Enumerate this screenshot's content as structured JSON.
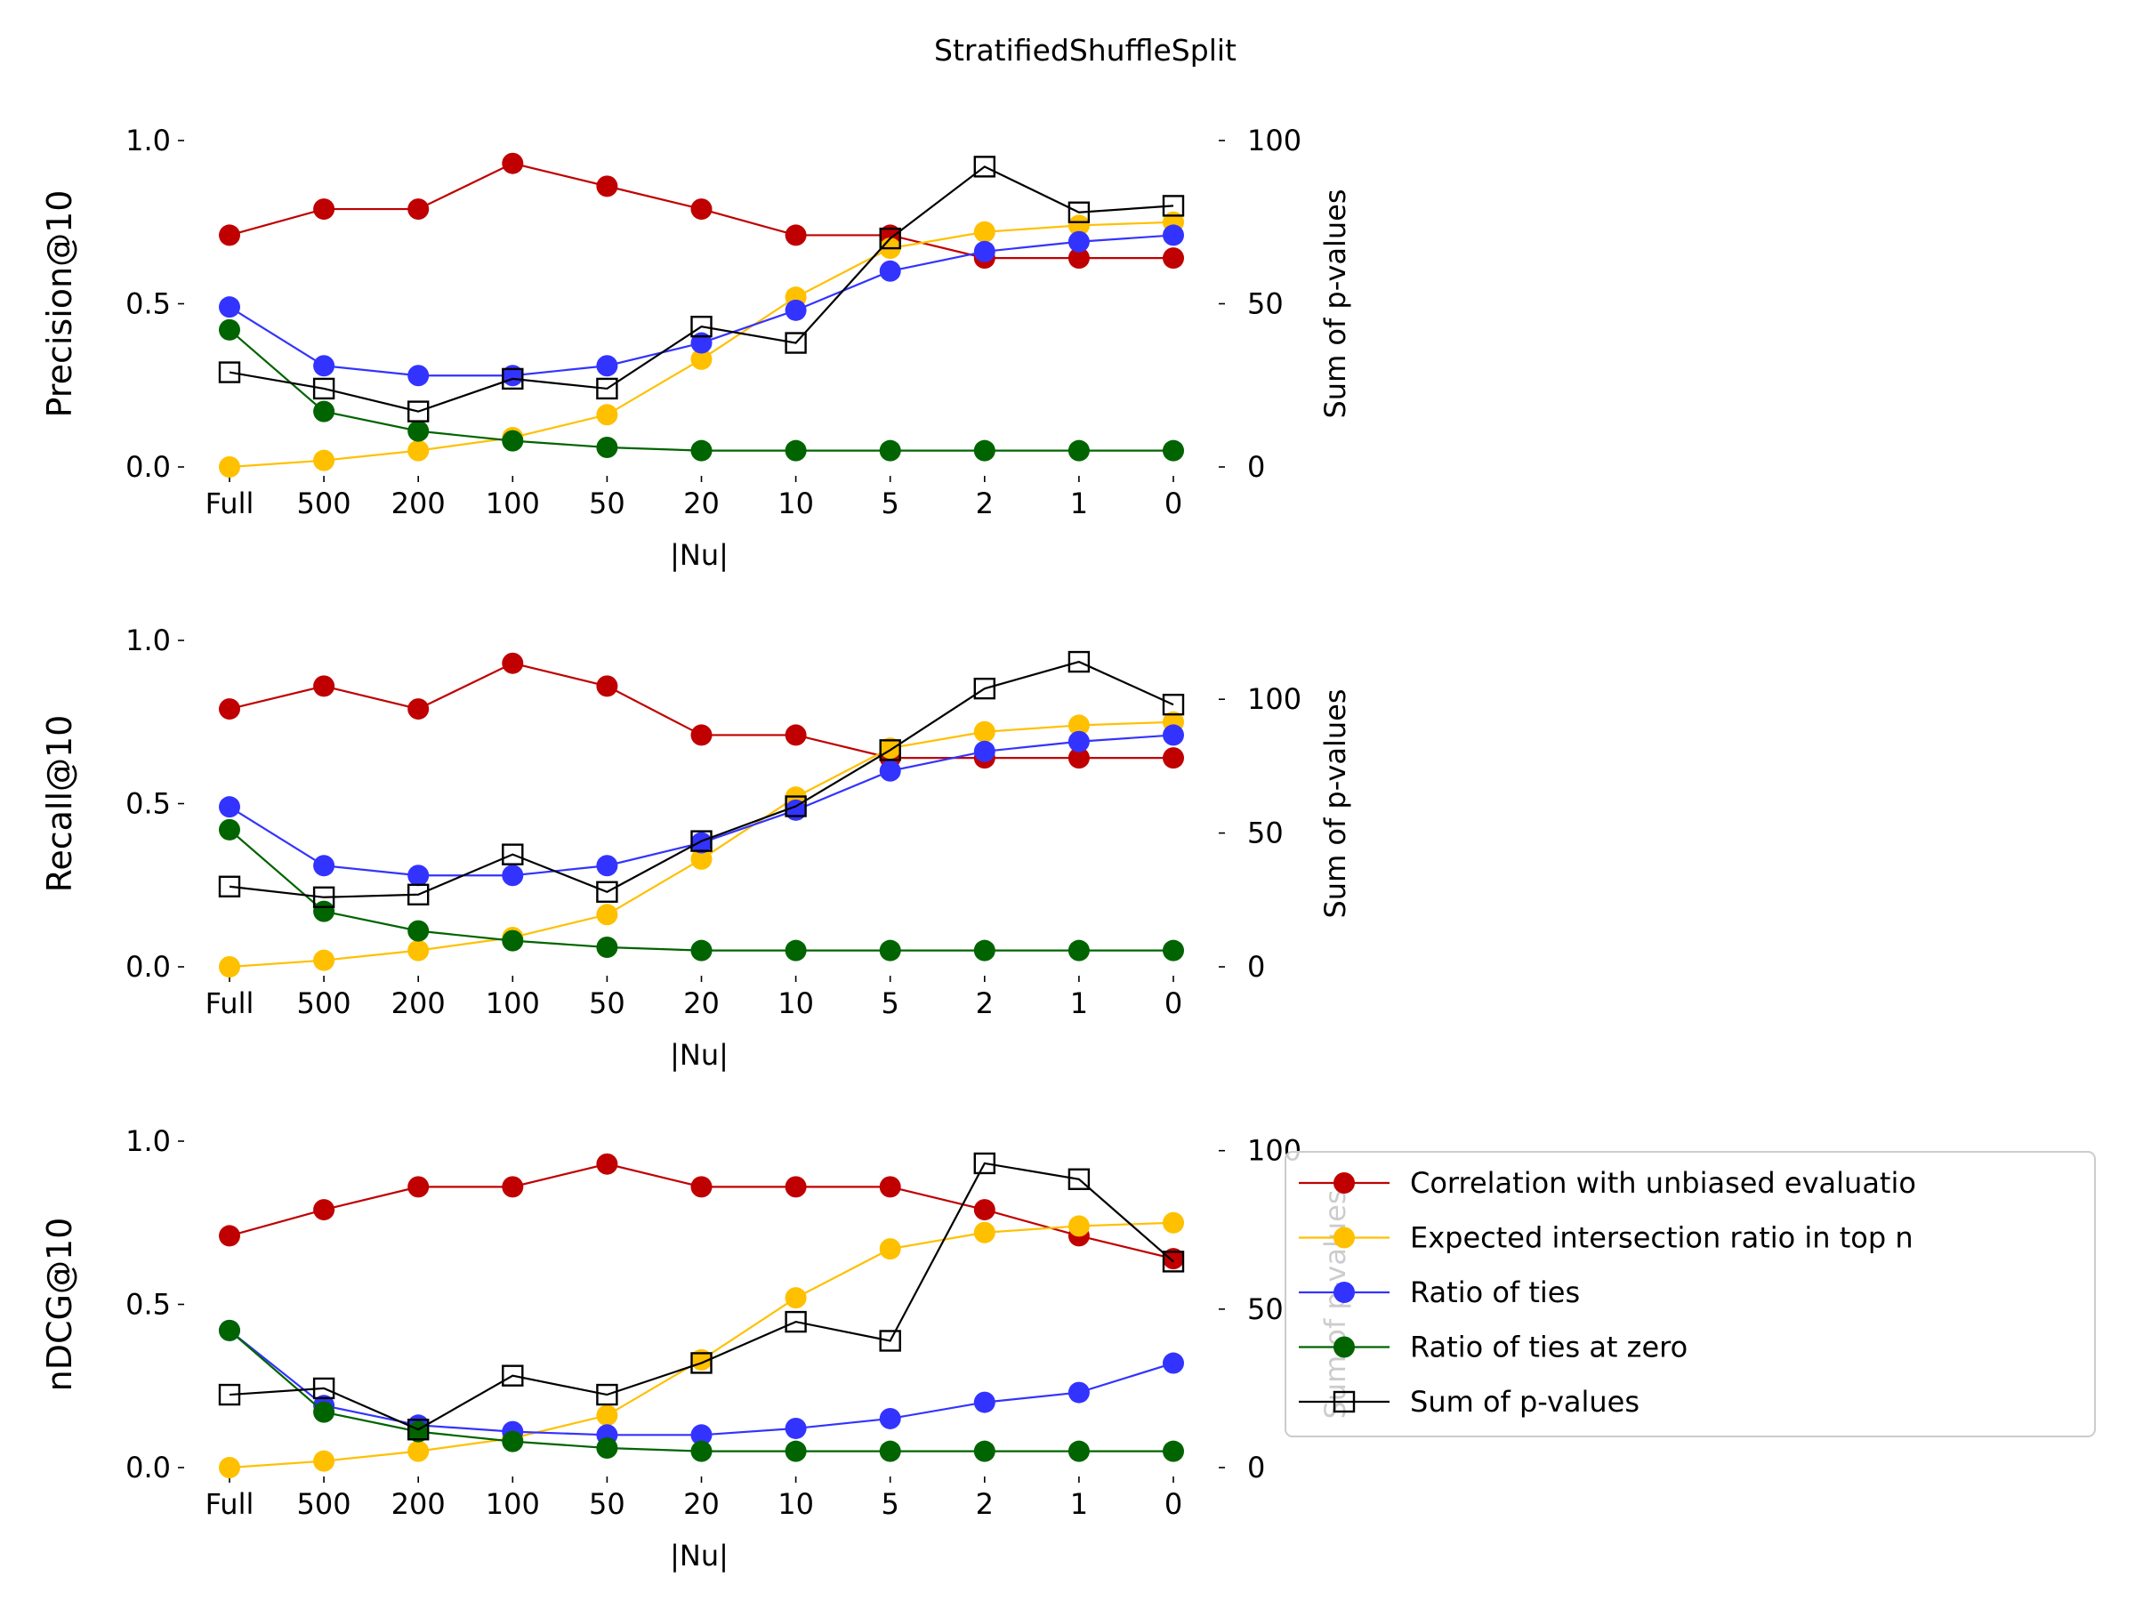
{
  "suptitle": "StratifiedShuffleSplit",
  "colors": {
    "correlation": "#c00000",
    "intersection": "#ffc000",
    "ties": "#3333ff",
    "ties_zero": "#006400",
    "pvalues": "#000000"
  },
  "legend": {
    "placement": "right of bottom panel",
    "entries": [
      {
        "key": "correlation",
        "label": "Correlation with unbiased evaluatio",
        "marker": "circle"
      },
      {
        "key": "intersection",
        "label": "Expected intersection ratio in top n",
        "marker": "circle"
      },
      {
        "key": "ties",
        "label": "Ratio of ties",
        "marker": "circle"
      },
      {
        "key": "ties_zero",
        "label": "Ratio of ties at zero",
        "marker": "circle"
      },
      {
        "key": "pvalues",
        "label": "Sum of p-values",
        "marker": "square"
      }
    ]
  },
  "chart_data": [
    {
      "type": "line",
      "ylabel": "Precision@10",
      "xlabel": "|Nu|",
      "y2label": "Sum of p-values",
      "categories": [
        "Full",
        "500",
        "200",
        "100",
        "50",
        "20",
        "10",
        "5",
        "2",
        "1",
        "0"
      ],
      "ylim": [
        0,
        1.0
      ],
      "yticks": [
        "0.0",
        "0.5",
        "1.0"
      ],
      "y2lim": [
        0,
        100
      ],
      "y2ticks": [
        "0",
        "50",
        "100"
      ],
      "series": [
        {
          "key": "correlation",
          "name": "Correlation with unbiased evaluatio",
          "values": [
            0.71,
            0.79,
            0.79,
            0.93,
            0.86,
            0.79,
            0.71,
            0.71,
            0.64,
            0.64,
            0.64
          ]
        },
        {
          "key": "intersection",
          "name": "Expected intersection ratio in top n",
          "values": [
            0.0,
            0.02,
            0.05,
            0.09,
            0.16,
            0.33,
            0.52,
            0.67,
            0.72,
            0.74,
            0.75
          ]
        },
        {
          "key": "ties",
          "name": "Ratio of ties",
          "values": [
            0.49,
            0.31,
            0.28,
            0.28,
            0.31,
            0.38,
            0.48,
            0.6,
            0.66,
            0.69,
            0.71
          ]
        },
        {
          "key": "ties_zero",
          "name": "Ratio of ties at zero",
          "values": [
            0.42,
            0.17,
            0.11,
            0.08,
            0.06,
            0.05,
            0.05,
            0.05,
            0.05,
            0.05,
            0.05
          ]
        }
      ],
      "secondary_series": {
        "key": "pvalues",
        "name": "Sum of p-values",
        "values": [
          29,
          24,
          17,
          27,
          24,
          43,
          38,
          70,
          92,
          78,
          80
        ]
      }
    },
    {
      "type": "line",
      "ylabel": "Recall@10",
      "xlabel": "|Nu|",
      "y2label": "Sum of p-values",
      "categories": [
        "Full",
        "500",
        "200",
        "100",
        "50",
        "20",
        "10",
        "5",
        "2",
        "1",
        "0"
      ],
      "ylim": [
        0,
        1.0
      ],
      "yticks": [
        "0.0",
        "0.5",
        "1.0"
      ],
      "y2lim": [
        0,
        122
      ],
      "y2ticks": [
        "0",
        "50",
        "100"
      ],
      "series": [
        {
          "key": "correlation",
          "name": "Correlation with unbiased evaluatio",
          "values": [
            0.79,
            0.86,
            0.79,
            0.93,
            0.86,
            0.71,
            0.71,
            0.64,
            0.64,
            0.64,
            0.64
          ]
        },
        {
          "key": "intersection",
          "name": "Expected intersection ratio in top n",
          "values": [
            0.0,
            0.02,
            0.05,
            0.09,
            0.16,
            0.33,
            0.52,
            0.67,
            0.72,
            0.74,
            0.75
          ]
        },
        {
          "key": "ties",
          "name": "Ratio of ties",
          "values": [
            0.49,
            0.31,
            0.28,
            0.28,
            0.31,
            0.38,
            0.48,
            0.6,
            0.66,
            0.69,
            0.71
          ]
        },
        {
          "key": "ties_zero",
          "name": "Ratio of ties at zero",
          "values": [
            0.42,
            0.17,
            0.11,
            0.08,
            0.06,
            0.05,
            0.05,
            0.05,
            0.05,
            0.05,
            0.05
          ]
        }
      ],
      "secondary_series": {
        "key": "pvalues",
        "name": "Sum of p-values",
        "values": [
          30,
          26,
          27,
          42,
          28,
          47,
          60,
          81,
          104,
          114,
          98
        ]
      }
    },
    {
      "type": "line",
      "ylabel": "nDCG@10",
      "xlabel": "|Nu|",
      "y2label": "Sum of p-values",
      "categories": [
        "Full",
        "500",
        "200",
        "100",
        "50",
        "20",
        "10",
        "5",
        "2",
        "1",
        "0"
      ],
      "ylim": [
        0,
        1.0
      ],
      "yticks": [
        "0.0",
        "0.5",
        "1.0"
      ],
      "y2lim": [
        0,
        103
      ],
      "y2ticks": [
        "0",
        "50",
        "100"
      ],
      "series": [
        {
          "key": "correlation",
          "name": "Correlation with unbiased evaluatio",
          "values": [
            0.71,
            0.79,
            0.86,
            0.86,
            0.93,
            0.86,
            0.86,
            0.86,
            0.79,
            0.71,
            0.64
          ]
        },
        {
          "key": "intersection",
          "name": "Expected intersection ratio in top n",
          "values": [
            0.0,
            0.02,
            0.05,
            0.09,
            0.16,
            0.33,
            0.52,
            0.67,
            0.72,
            0.74,
            0.75
          ]
        },
        {
          "key": "ties",
          "name": "Ratio of ties",
          "values": [
            0.42,
            0.19,
            0.13,
            0.11,
            0.1,
            0.1,
            0.12,
            0.15,
            0.2,
            0.23,
            0.32
          ]
        },
        {
          "key": "ties_zero",
          "name": "Ratio of ties at zero",
          "values": [
            0.42,
            0.17,
            0.11,
            0.08,
            0.06,
            0.05,
            0.05,
            0.05,
            0.05,
            0.05,
            0.05
          ]
        }
      ],
      "secondary_series": {
        "key": "pvalues",
        "name": "Sum of p-values",
        "values": [
          23,
          25,
          12,
          29,
          23,
          33,
          46,
          40,
          96,
          91,
          65
        ]
      }
    }
  ]
}
